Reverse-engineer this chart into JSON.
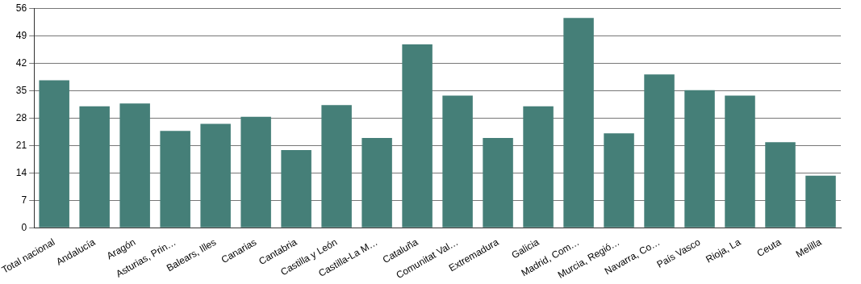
{
  "chart_data": {
    "type": "bar",
    "categories": [
      "Total nacional",
      "Andalucía",
      "Aragón",
      "Asturias, Prin…",
      "Balears, Illes",
      "Canarias",
      "Cantabria",
      "Castilla y León",
      "Castilla-La M…",
      "Cataluña",
      "Comunitat Val…",
      "Extremadura",
      "Galicia",
      "Madrid, Com…",
      "Murcia, Regió…",
      "Navarra, Co…",
      "País Vasco",
      "Rioja, La",
      "Ceuta",
      "Melilla"
    ],
    "values": [
      37.6,
      31.0,
      31.7,
      24.7,
      26.5,
      28.3,
      19.8,
      31.3,
      22.9,
      46.8,
      33.7,
      22.9,
      31.0,
      53.5,
      24.1,
      39.1,
      35.1,
      33.7,
      21.8,
      13.3
    ],
    "color": "#457f78",
    "ylim": [
      0,
      56
    ],
    "yticks": [
      0,
      7,
      14,
      21,
      28,
      35,
      42,
      49,
      56
    ],
    "grid": "y"
  }
}
